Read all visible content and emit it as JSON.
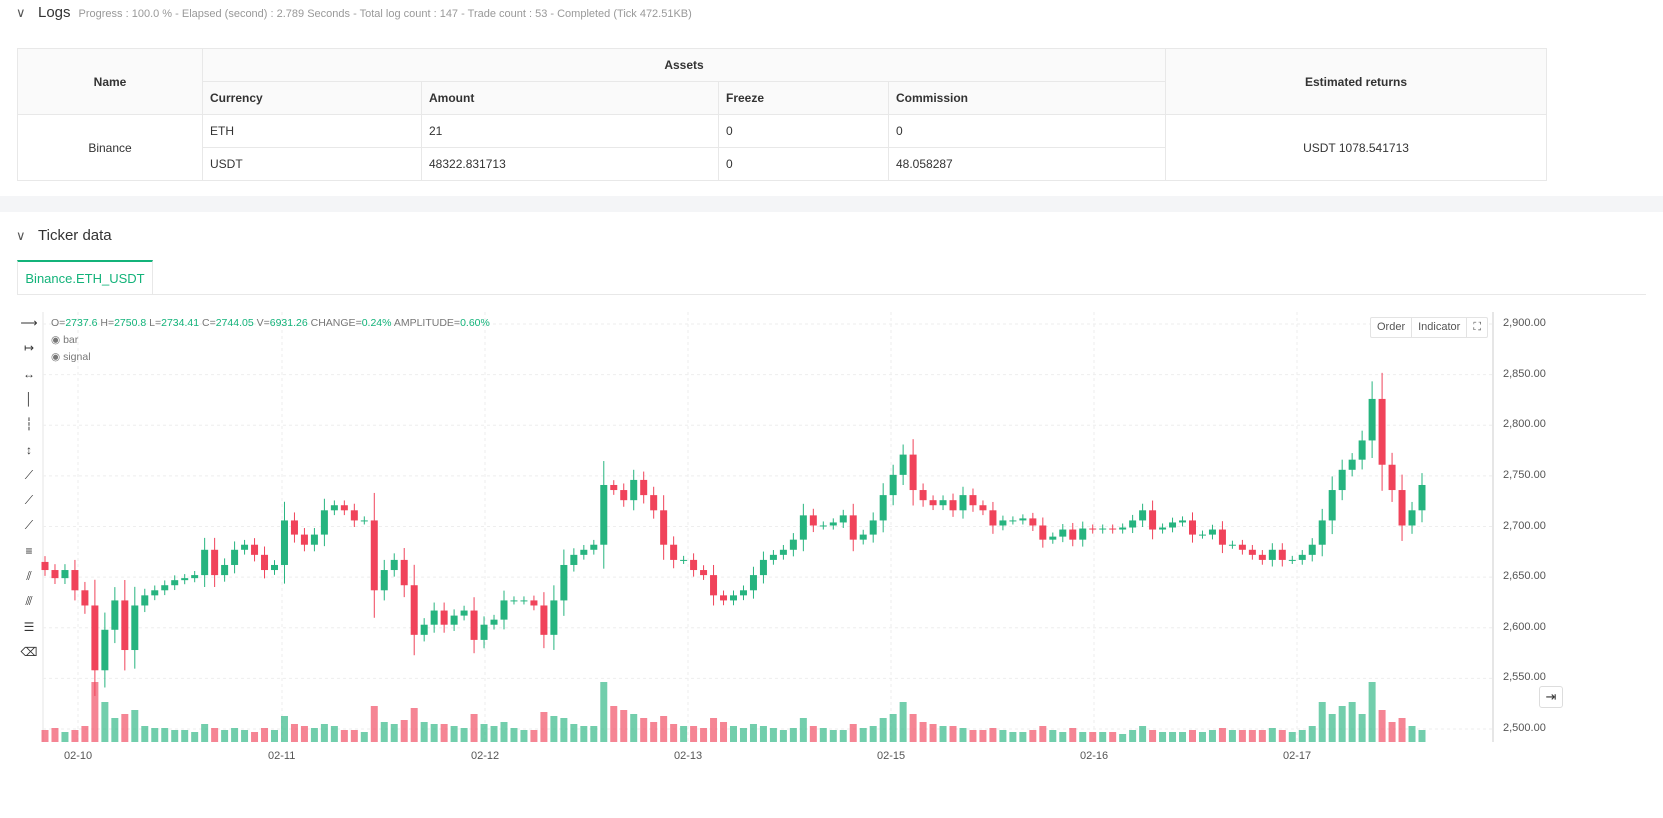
{
  "logs": {
    "title": "Logs",
    "info": "Progress : 100.0 % - Elapsed (second) : 2.789  Seconds - Total log count : 147 - Trade count : 53 - Completed (Tick 472.51KB)",
    "headers": {
      "name": "Name",
      "assets": "Assets",
      "currency": "Currency",
      "amount": "Amount",
      "freeze": "Freeze",
      "commission": "Commission",
      "returns": "Estimated returns"
    },
    "exchange": "Binance",
    "returns_value": "USDT 1078.541713",
    "rows": [
      {
        "currency": "ETH",
        "amount": "21",
        "freeze": "0",
        "commission": "0"
      },
      {
        "currency": "USDT",
        "amount": "48322.831713",
        "freeze": "0",
        "commission": "48.058287"
      }
    ]
  },
  "ticker": {
    "title": "Ticker data",
    "tab": "Binance.ETH_USDT",
    "ohlc": {
      "o_label": "O=",
      "o": "2737.6",
      "h_label": "H=",
      "h": "2750.8",
      "l_label": "L=",
      "l": "2734.41",
      "c_label": "C=",
      "c": "2744.05",
      "v_label": "V=",
      "v": "6931.26",
      "chg_label": "CHANGE=",
      "chg": "0.24%",
      "amp_label": "AMPLITUDE=",
      "amp": "0.60%"
    },
    "series": [
      "bar",
      "signal"
    ],
    "buttons": {
      "order": "Order",
      "indicator": "Indicator"
    },
    "up_color": "#26b47f",
    "down_color": "#f0435a"
  },
  "chart_data": {
    "type": "candlestick",
    "y_ticks": [
      "2,900.00",
      "2,850.00",
      "2,800.00",
      "2,750.00",
      "2,700.00",
      "2,650.00",
      "2,600.00",
      "2,550.00",
      "2,500.00"
    ],
    "ylim": [
      2500,
      2900
    ],
    "x_ticks": [
      "02-10",
      "02-11",
      "02-12",
      "02-13",
      "02-15",
      "02-16",
      "02-17"
    ],
    "first_open": 2665,
    "close": [
      2657,
      2649,
      2657,
      2637,
      2622,
      2558,
      2598,
      2627,
      2578,
      2622,
      2632,
      2637,
      2642,
      2647,
      2649,
      2652,
      2677,
      2652,
      2662,
      2677,
      2682,
      2672,
      2657,
      2662,
      2706,
      2692,
      2682,
      2692,
      2716,
      2721,
      2716,
      2706,
      2706,
      2637,
      2657,
      2667,
      2642,
      2593,
      2603,
      2617,
      2603,
      2612,
      2617,
      2588,
      2603,
      2608,
      2627,
      2627,
      2627,
      2622,
      2593,
      2627,
      2662,
      2672,
      2677,
      2682,
      2741,
      2736,
      2726,
      2746,
      2731,
      2716,
      2682,
      2667,
      2667,
      2657,
      2652,
      2632,
      2627,
      2632,
      2637,
      2652,
      2667,
      2672,
      2677,
      2687,
      2711,
      2701,
      2701,
      2704,
      2711,
      2687,
      2692,
      2706,
      2731,
      2751,
      2771,
      2736,
      2726,
      2721,
      2726,
      2716,
      2731,
      2721,
      2716,
      2701,
      2706,
      2706,
      2708,
      2701,
      2687,
      2690,
      2697,
      2687,
      2698,
      2697,
      2698,
      2697,
      2699,
      2706,
      2716,
      2697,
      2699,
      2704,
      2706,
      2692,
      2692,
      2697,
      2682,
      2682,
      2677,
      2672,
      2667,
      2677,
      2667,
      2667,
      2672,
      2682,
      2706,
      2736,
      2756,
      2766,
      2785,
      2826,
      2761,
      2736,
      2701,
      2716,
      2741
    ],
    "volume": [
      6,
      7,
      5,
      6,
      8,
      30,
      20,
      12,
      14,
      16,
      8,
      7,
      7,
      6,
      6,
      5,
      9,
      7,
      6,
      7,
      6,
      5,
      7,
      6,
      13,
      9,
      8,
      7,
      9,
      8,
      6,
      6,
      5,
      18,
      10,
      9,
      11,
      17,
      10,
      9,
      9,
      8,
      7,
      14,
      9,
      8,
      10,
      7,
      6,
      6,
      15,
      13,
      12,
      9,
      8,
      8,
      30,
      18,
      16,
      14,
      12,
      10,
      13,
      9,
      8,
      8,
      7,
      12,
      10,
      8,
      7,
      9,
      8,
      7,
      6,
      7,
      12,
      8,
      7,
      6,
      6,
      9,
      7,
      8,
      12,
      14,
      20,
      14,
      10,
      9,
      8,
      8,
      7,
      6,
      6,
      7,
      6,
      5,
      5,
      6,
      8,
      6,
      5,
      7,
      5,
      5,
      5,
      5,
      4,
      6,
      8,
      6,
      5,
      5,
      5,
      6,
      5,
      6,
      7,
      6,
      6,
      6,
      6,
      7,
      6,
      5,
      6,
      8,
      20,
      14,
      18,
      20,
      14,
      30,
      16,
      10,
      12,
      8,
      6
    ],
    "volume_unit": 1000
  }
}
